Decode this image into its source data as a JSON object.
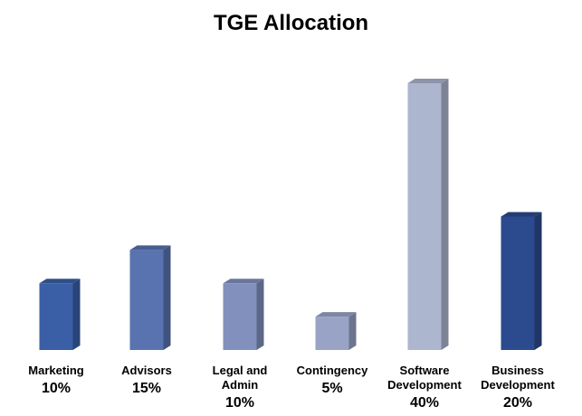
{
  "chart_data": {
    "type": "bar",
    "title": "TGE Allocation",
    "categories": [
      "Marketing",
      "Advisors",
      "Legal and Admin",
      "Contingency",
      "Software Development",
      "Business Development"
    ],
    "category_lines": [
      [
        "Marketing"
      ],
      [
        "Advisors"
      ],
      [
        "Legal and",
        "Admin"
      ],
      [
        "Contingency"
      ],
      [
        "Software",
        "Development"
      ],
      [
        "Business",
        "Development"
      ]
    ],
    "values": [
      10,
      15,
      10,
      5,
      40,
      20
    ],
    "value_labels": [
      "10%",
      "15%",
      "10%",
      "5%",
      "40%",
      "20%"
    ],
    "unit": "%",
    "ylim": [
      0,
      40
    ],
    "grid": false,
    "legend": "none",
    "colors": [
      "#3a5fa6",
      "#5873af",
      "#8190bd",
      "#98a3c5",
      "#adb6cf",
      "#2b4b8e"
    ]
  }
}
